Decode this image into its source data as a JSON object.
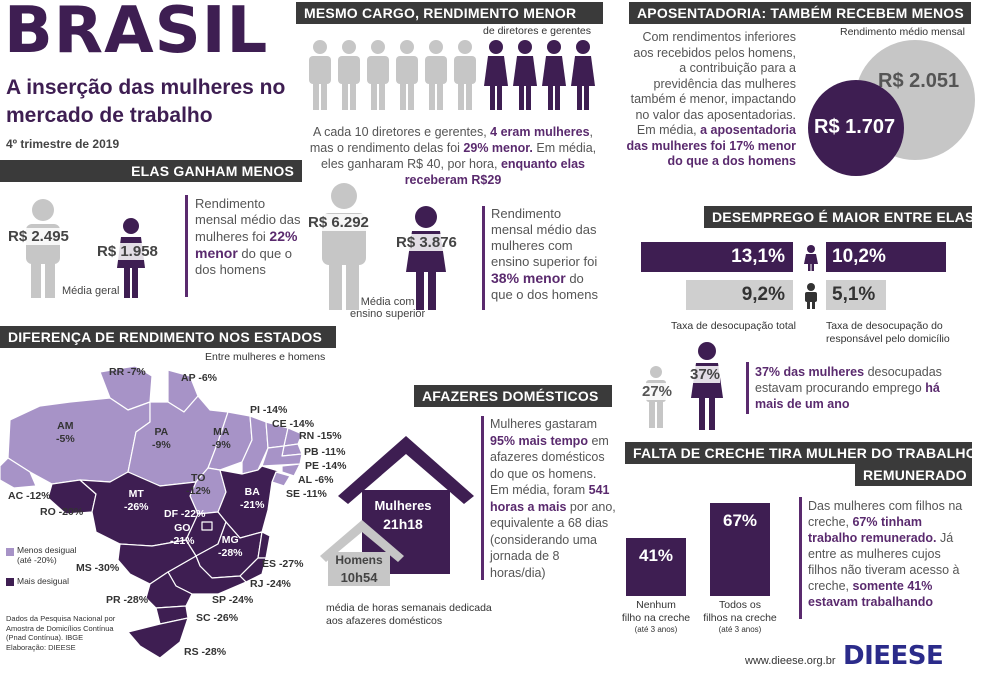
{
  "header": {
    "brand": "BRASIL",
    "title_line1": "A inserção das mulheres no",
    "title_line2": "mercado de trabalho",
    "period": "4º trimestre de 2019"
  },
  "colors": {
    "purple_dark": "#3e1e52",
    "purple_mid": "#5a2a6e",
    "lilac": "#a793c7",
    "gray": "#c6c6c6",
    "header_bg": "#3a3a3a"
  },
  "earn_less": {
    "heading": "ELAS GANHAM MENOS",
    "general_men": "R$ 2.495",
    "general_women": "R$ 1.958",
    "general_caption": "Média geral",
    "general_text_pre": "Rendimento mensal médio das mulheres foi ",
    "general_text_hl": "22% menor",
    "general_text_post": " do que o dos homens",
    "higher_men": "R$ 6.292",
    "higher_women": "R$ 3.876",
    "higher_caption_1": "Média com",
    "higher_caption_2": "ensino superior",
    "higher_text_pre": "Rendimento mensal médio das mulheres com ensino superior foi ",
    "higher_text_hl": "38% menor",
    "higher_text_post": " do que o dos homens"
  },
  "same_role": {
    "heading": "MESMO CARGO, RENDIMENTO MENOR",
    "subheading": "de diretores e gerentes",
    "t1": "A cada 10 diretores e gerentes, ",
    "t1_hl": "4 eram mulheres",
    "t2": ", mas o rendimento delas foi ",
    "t2_hl": "29% menor.",
    "t3": " Em média, eles ganharam R$ 40, por hora, ",
    "t3_hl": "enquanto elas receberam R$29"
  },
  "retirement": {
    "heading": "APOSENTADORIA: TAMBÉM RECEBEM MENOS",
    "caption": "Rendimento médio mensal",
    "men_value": "R$ 2.051",
    "women_value": "R$ 1.707",
    "text_pre": "Com rendimentos inferiores aos recebidos pelos homens, a contribuição para a previdência das mulheres também é menor, impactando no valor das aposentadorias. Em média, ",
    "text_hl": "a aposentadoria das mulheres foi 17% menor do que a dos homens"
  },
  "unemployment": {
    "heading": "DESEMPREGO É MAIOR ENTRE ELAS",
    "women_total": "13,1%",
    "women_head": "10,2%",
    "men_total": "9,2%",
    "men_head": "5,1%",
    "label_total": "Taxa de desocupação total",
    "label_head_1": "Taxa de desocupação do",
    "label_head_2": "responsável pelo domicílio",
    "long_men": "27%",
    "long_women": "37%",
    "long_hl1": "37% das mulheres",
    "long_text": " desocupadas estavam procurando emprego ",
    "long_hl2": "há mais de um ano"
  },
  "states": {
    "heading": "DIFERENÇA DE RENDIMENTO NOS ESTADOS",
    "subheading": "Entre mulheres e homens",
    "legend_less": "Menos desigual",
    "legend_less_sub": "(até -20%)",
    "legend_more": "Mais desigual",
    "labels": [
      {
        "uf": "RR",
        "v": "-7%"
      },
      {
        "uf": "AP",
        "v": "-6%"
      },
      {
        "uf": "AM",
        "v": "-5%"
      },
      {
        "uf": "PA",
        "v": "-9%"
      },
      {
        "uf": "MA",
        "v": "-9%"
      },
      {
        "uf": "PI",
        "v": "-14%"
      },
      {
        "uf": "CE",
        "v": "-14%"
      },
      {
        "uf": "RN",
        "v": "-15%"
      },
      {
        "uf": "PB",
        "v": "-11%"
      },
      {
        "uf": "PE",
        "v": "-14%"
      },
      {
        "uf": "AL",
        "v": "-6%"
      },
      {
        "uf": "SE",
        "v": "-11%"
      },
      {
        "uf": "BA",
        "v": "-21%"
      },
      {
        "uf": "TO",
        "v": "-12%"
      },
      {
        "uf": "MT",
        "v": "-26%"
      },
      {
        "uf": "AC",
        "v": "-12%"
      },
      {
        "uf": "RO",
        "v": "-20%"
      },
      {
        "uf": "DF",
        "v": "-22%"
      },
      {
        "uf": "GO",
        "v": "-21%"
      },
      {
        "uf": "MG",
        "v": "-28%"
      },
      {
        "uf": "ES",
        "v": "-27%"
      },
      {
        "uf": "RJ",
        "v": "-24%"
      },
      {
        "uf": "SP",
        "v": "-24%"
      },
      {
        "uf": "MS",
        "v": "-30%"
      },
      {
        "uf": "PR",
        "v": "-28%"
      },
      {
        "uf": "SC",
        "v": "-26%"
      },
      {
        "uf": "RS",
        "v": "-28%"
      }
    ],
    "source": "Dados da Pesquisa Nacional por Amostra de Domicílios Contínua (Pnad Contínua). IBGE",
    "credit": "Elaboração: DIEESE"
  },
  "housework": {
    "heading": "AFAZERES  DOMÉSTICOS",
    "women_label": "Mulheres",
    "women_hours": "21h18",
    "men_label": "Homens",
    "men_hours": "10h54",
    "caption": "média de horas semanais dedicada aos afazeres domésticos",
    "t1": "Mulheres gastaram ",
    "t1_hl": "95% mais tempo",
    "t2": " em afazeres domésticos do que os homens. Em média, foram ",
    "t2_hl": "541 horas a mais",
    "t3": " por ano, equivalente a 68 dias (considerando uma jornada de 8 horas/dia)"
  },
  "daycare": {
    "heading_1": "FALTA DE CRECHE TIRA MULHER DO TRABALHO",
    "heading_2": "REMUNERADO",
    "none_value": "41%",
    "all_value": "67%",
    "none_label_1": "Nenhum",
    "none_label_2": "filho na creche",
    "none_label_3": "(até 3 anos)",
    "all_label_1": "Todos os",
    "all_label_2": "filhos na creche",
    "all_label_3": "(até 3 anos)",
    "t1": "Das mulheres com filhos na creche, ",
    "t1_hl": "67% tinham trabalho remunerado.",
    "t2": " Já entre as mulheres cujos filhos não tiveram acesso à creche, ",
    "t2_hl": "somente 41% estavam trabalhando"
  },
  "footer": {
    "url": "www.dieese.org.br",
    "logo": "DIEESE"
  }
}
